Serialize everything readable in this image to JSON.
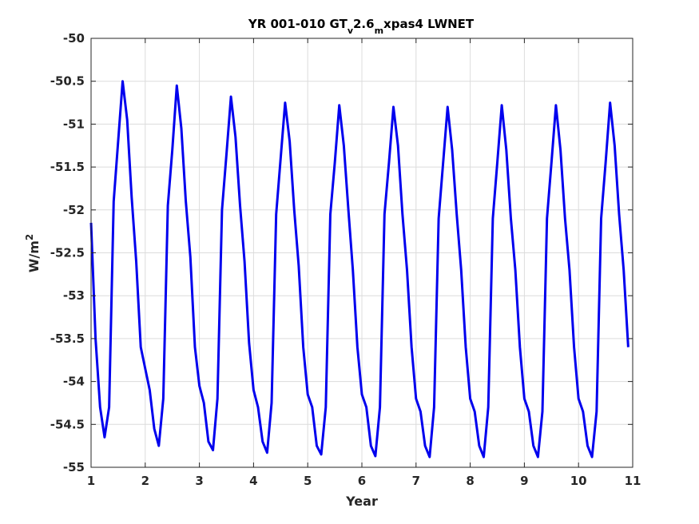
{
  "chart_data": {
    "type": "line",
    "title_parts": {
      "a": "YR 001-010 GT",
      "b": "v",
      "c": "2.6",
      "d": "m",
      "e": "xpas4 LWNET"
    },
    "xlabel": "Year",
    "ylabel_base": "W/m",
    "ylabel_sup": "2",
    "xlim": [
      1,
      11
    ],
    "ylim": [
      -55,
      -50
    ],
    "xticks": [
      "1",
      "2",
      "3",
      "4",
      "5",
      "6",
      "7",
      "8",
      "9",
      "10",
      "11"
    ],
    "yticks": [
      "-50",
      "-50.5",
      "-51",
      "-51.5",
      "-52",
      "-52.5",
      "-53",
      "-53.5",
      "-54",
      "-54.5",
      "-55"
    ],
    "grid": true,
    "colors": {
      "line": "#0000ee",
      "grid": "#dcdcdc",
      "axis": "#262626"
    },
    "monthly_cycle": {
      "offsets": [
        0.0,
        0.0833,
        0.1667,
        0.25,
        0.3333,
        0.4167,
        0.5,
        0.5833,
        0.6667,
        0.75,
        0.8333,
        0.9167
      ],
      "years": [
        [
          -52.15,
          -53.5,
          -54.3,
          -54.65,
          -54.3,
          -51.9,
          -51.2,
          -50.5,
          -50.95,
          -51.85,
          -52.6,
          -53.6
        ],
        [
          -53.85,
          -54.1,
          -54.55,
          -54.75,
          -54.2,
          -51.95,
          -51.3,
          -50.55,
          -51.05,
          -51.9,
          -52.55,
          -53.6
        ],
        [
          -54.05,
          -54.25,
          -54.7,
          -54.8,
          -54.2,
          -52.0,
          -51.35,
          -50.68,
          -51.15,
          -51.95,
          -52.6,
          -53.55
        ],
        [
          -54.1,
          -54.3,
          -54.7,
          -54.83,
          -54.25,
          -52.05,
          -51.4,
          -50.75,
          -51.2,
          -52.0,
          -52.65,
          -53.6
        ],
        [
          -54.15,
          -54.3,
          -54.75,
          -54.85,
          -54.3,
          -52.05,
          -51.45,
          -50.78,
          -51.25,
          -52.0,
          -52.7,
          -53.6
        ],
        [
          -54.15,
          -54.3,
          -54.75,
          -54.87,
          -54.3,
          -52.05,
          -51.45,
          -50.8,
          -51.25,
          -52.05,
          -52.7,
          -53.6
        ],
        [
          -54.2,
          -54.35,
          -54.75,
          -54.88,
          -54.3,
          -52.1,
          -51.45,
          -50.8,
          -51.3,
          -52.05,
          -52.7,
          -53.6
        ],
        [
          -54.2,
          -54.35,
          -54.75,
          -54.88,
          -54.3,
          -52.1,
          -51.45,
          -50.78,
          -51.3,
          -52.1,
          -52.7,
          -53.6
        ],
        [
          -54.2,
          -54.35,
          -54.75,
          -54.88,
          -54.35,
          -52.1,
          -51.45,
          -50.78,
          -51.3,
          -52.1,
          -52.7,
          -53.6
        ],
        [
          -54.2,
          -54.35,
          -54.75,
          -54.88,
          -54.35,
          -52.1,
          -51.45,
          -50.75,
          -51.25,
          -52.05,
          -52.7,
          -53.6
        ]
      ]
    }
  }
}
